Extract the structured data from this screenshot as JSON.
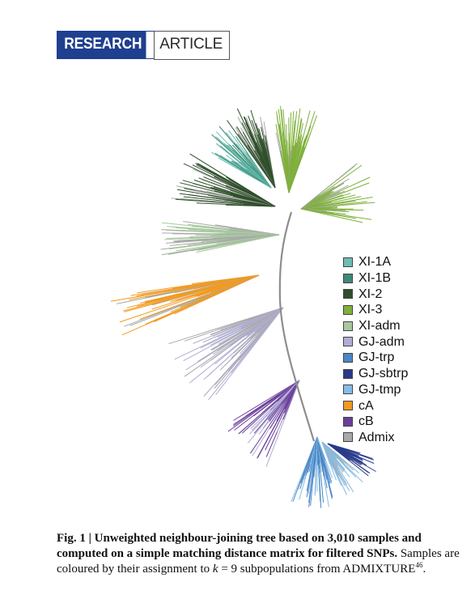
{
  "header": {
    "badge_left": "RESEARCH",
    "badge_right": "ARTICLE"
  },
  "legend": [
    {
      "label": "XI-1A",
      "color": "#6bbfb0"
    },
    {
      "label": "XI-1B",
      "color": "#3d8a78"
    },
    {
      "label": "XI-2",
      "color": "#2f4f2a"
    },
    {
      "label": "XI-3",
      "color": "#7fb03a"
    },
    {
      "label": "XI-adm",
      "color": "#a8c8a0"
    },
    {
      "label": "GJ-adm",
      "color": "#b0aed4"
    },
    {
      "label": "GJ-trp",
      "color": "#4b86c6"
    },
    {
      "label": "GJ-sbtrp",
      "color": "#2a3a8a"
    },
    {
      "label": "GJ-tmp",
      "color": "#86bde6"
    },
    {
      "label": "cA",
      "color": "#f39a1e"
    },
    {
      "label": "cB",
      "color": "#6a3f9a"
    },
    {
      "label": "Admix",
      "color": "#a9a9a9"
    }
  ],
  "caption": {
    "title": "Fig. 1 | Unweighted neighbour-joining tree based on 3,010 samples and computed on a simple matching distance matrix for filtered SNPs.",
    "body_before_k": "Samples are coloured by their assignment to",
    "k_symbol": "k",
    "body_after_k": " = 9 subpopulations from ADMIXTURE",
    "ref": "46",
    "end": "."
  }
}
